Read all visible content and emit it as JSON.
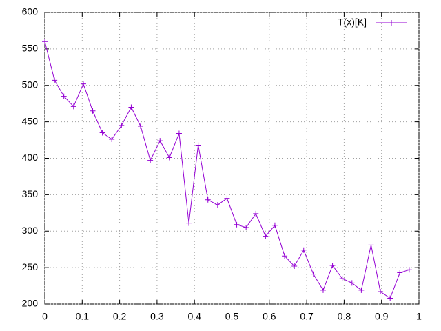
{
  "chart_data": {
    "type": "line",
    "x": [
      0,
      0.026,
      0.051,
      0.077,
      0.103,
      0.128,
      0.154,
      0.179,
      0.205,
      0.231,
      0.256,
      0.282,
      0.308,
      0.333,
      0.359,
      0.385,
      0.41,
      0.436,
      0.462,
      0.487,
      0.513,
      0.538,
      0.564,
      0.59,
      0.615,
      0.641,
      0.667,
      0.692,
      0.718,
      0.744,
      0.769,
      0.795,
      0.821,
      0.846,
      0.872,
      0.897,
      0.923,
      0.949,
      0.974
    ],
    "series": [
      {
        "name": "T(x)[K]",
        "color": "#9400d3",
        "values": [
          560,
          507,
          485,
          471,
          502,
          465,
          435,
          426,
          445,
          470,
          444,
          397,
          424,
          401,
          434,
          311,
          418,
          343,
          336,
          345,
          309,
          305,
          324,
          293,
          308,
          266,
          252,
          274,
          241,
          219,
          253,
          235,
          229,
          219,
          281,
          217,
          208,
          243,
          247
        ]
      }
    ],
    "xlim": [
      0,
      1
    ],
    "xticks": [
      0,
      0.1,
      0.2,
      0.3,
      0.4,
      0.5,
      0.6,
      0.7,
      0.8,
      0.9,
      1
    ],
    "ylim": [
      200,
      600
    ],
    "yticks": [
      200,
      250,
      300,
      350,
      400,
      450,
      500,
      550,
      600
    ],
    "grid": true,
    "legend": "top-right"
  }
}
